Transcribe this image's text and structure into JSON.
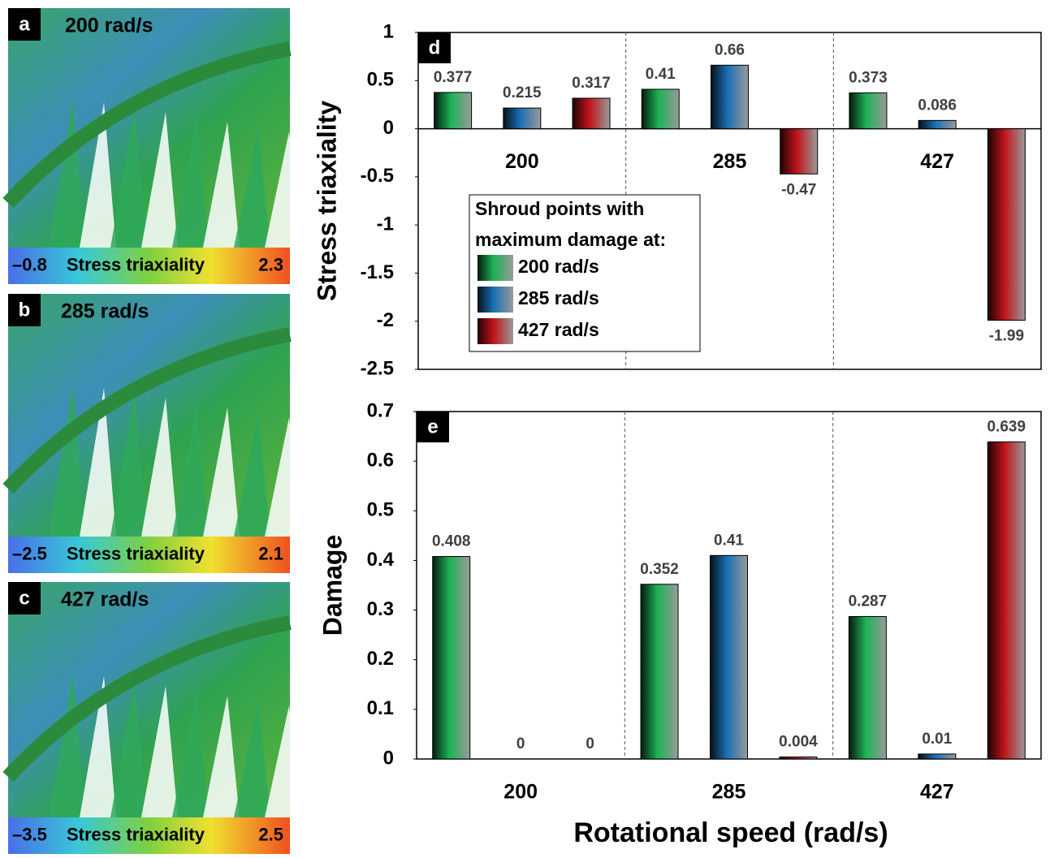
{
  "panels": [
    {
      "label": "a",
      "speed": "200 rad/s",
      "colorbar": {
        "min": "–0.8",
        "title": "Stress triaxiality",
        "max": "2.3"
      }
    },
    {
      "label": "b",
      "speed": "285 rad/s",
      "colorbar": {
        "min": "–2.5",
        "title": "Stress triaxiality",
        "max": "2.1"
      }
    },
    {
      "label": "c",
      "speed": "427 rad/s",
      "colorbar": {
        "min": "–3.5",
        "title": "Stress triaxiality",
        "max": "2.5"
      }
    }
  ],
  "chart_data": [
    {
      "type": "bar",
      "label": "d",
      "ylabel": "Stress triaxiality",
      "categories": [
        "200",
        "285",
        "427"
      ],
      "series": [
        {
          "name": "200 rad/s",
          "color": "#1db254",
          "values": [
            0.377,
            0.41,
            0.373
          ]
        },
        {
          "name": "285 rad/s",
          "color": "#1a6fb5",
          "values": [
            0.215,
            0.66,
            0.086
          ]
        },
        {
          "name": "427 rad/s",
          "color": "#c0141a",
          "values": [
            0.317,
            -0.47,
            -1.99
          ]
        }
      ],
      "ylim": [
        -2.5,
        1
      ],
      "yticks": [
        -2.5,
        -2,
        -1.5,
        -1,
        -0.5,
        0,
        0.5,
        1
      ],
      "legend_title": [
        "Shroud points with",
        "maximum damage at:"
      ]
    },
    {
      "type": "bar",
      "label": "e",
      "ylabel": "Damage",
      "xlabel": "Rotational speed (rad/s)",
      "categories": [
        "200",
        "285",
        "427"
      ],
      "series": [
        {
          "name": "200 rad/s",
          "color": "#1db254",
          "values": [
            0.408,
            0.352,
            0.287
          ]
        },
        {
          "name": "285 rad/s",
          "color": "#1a6fb5",
          "values": [
            0,
            0.41,
            0.01
          ]
        },
        {
          "name": "427 rad/s",
          "color": "#c0141a",
          "values": [
            0,
            0.004,
            0.639
          ]
        }
      ],
      "ylim": [
        0,
        0.7
      ],
      "yticks": [
        0,
        0.1,
        0.2,
        0.3,
        0.4,
        0.5,
        0.6,
        0.7
      ]
    }
  ]
}
